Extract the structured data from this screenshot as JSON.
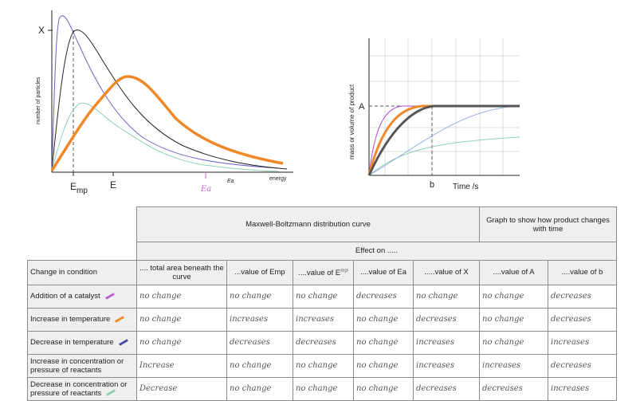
{
  "mb_graph": {
    "ylabel": "number of particles",
    "xlabel": "energy",
    "x_marker": "X",
    "emp_label": "Emp",
    "e_label": "E",
    "ea_handwritten": "Ea",
    "ea_label": "Ea",
    "colors": {
      "black": "#222222",
      "orange": "#f0882a",
      "purple": "#6b66c8",
      "green": "#8fd0b0",
      "dash": "#555555"
    }
  },
  "product_graph": {
    "ylabel": "mass or volume of product",
    "xlabel": "Time /s",
    "a_label": "A",
    "b_label": "b",
    "colors": {
      "purple": "#b04ed8",
      "orange": "#f0882a",
      "dark": "#555555",
      "blue": "#9ab0e0",
      "green": "#8fd0b0",
      "grid": "#d0d0d0"
    }
  },
  "table": {
    "group_mb": "Maxwell-Boltzmann distribution curve",
    "group_prod": "Graph to show how product changes with time",
    "effect_on": "Effect on .....",
    "row_header": "Change in condition",
    "columns": [
      ".... total area beneath the curve",
      "...value of Emp",
      "....value of E",
      "....value of Ea",
      ".....value of X",
      "....value of A",
      "....value of b"
    ],
    "e_annotation": "mp",
    "rows": [
      {
        "condition": "Addition of a catalyst",
        "swatch": "#c060d8",
        "values": [
          "no change",
          "no change",
          "no change",
          "decreases",
          "no change",
          "no change",
          "decreases"
        ]
      },
      {
        "condition": "Increase in temperature",
        "swatch": "#f0882a",
        "values": [
          "no change",
          "increases",
          "increases",
          "no change",
          "decreases",
          "no change",
          "decreases"
        ]
      },
      {
        "condition": "Decrease in temperature",
        "swatch": "#4a4aa8",
        "values": [
          "no change",
          "decreases",
          "decreases",
          "no change",
          "increases",
          "no change",
          "increases"
        ]
      },
      {
        "condition": "Increase in concentration or pressure of reactants",
        "swatch": "",
        "values": [
          "Increase",
          "no change",
          "no change",
          "no change",
          "increases",
          "increases",
          "decreases"
        ]
      },
      {
        "condition": "Decrease in concentration or pressure of reactants",
        "swatch": "#8fd0b0",
        "values": [
          "Decrease",
          "no change",
          "no change",
          "no change",
          "decreases",
          "decreases",
          "increases"
        ]
      }
    ]
  }
}
